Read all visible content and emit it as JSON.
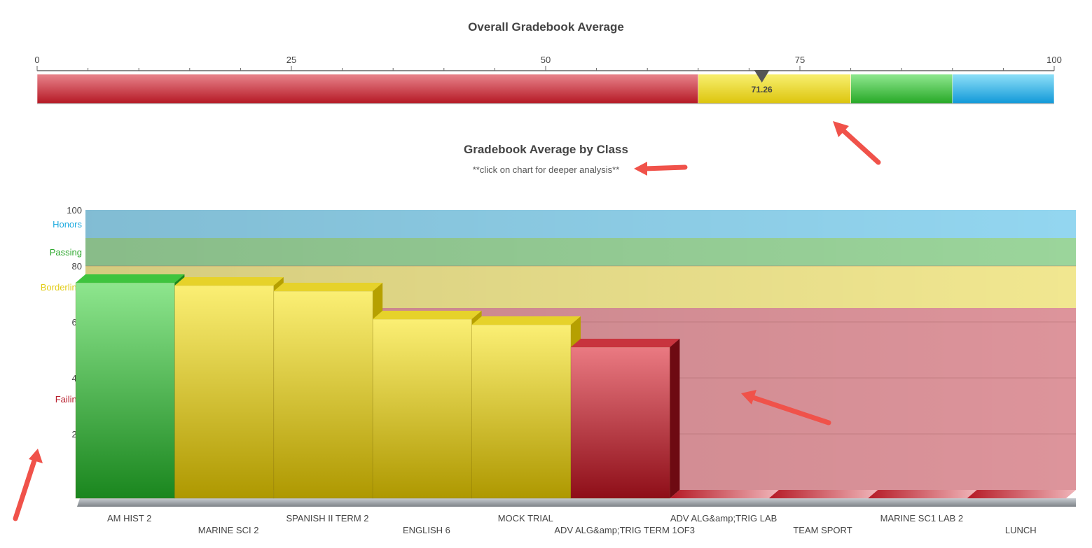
{
  "gauge": {
    "title": "Overall Gradebook Average",
    "min": 0,
    "max": 100,
    "value": 71.26,
    "value_label": "71.26",
    "ticks": [
      0,
      25,
      50,
      75,
      100
    ],
    "ranges": [
      {
        "from": 0,
        "to": 65,
        "color": "#c8202e"
      },
      {
        "from": 65,
        "to": 80,
        "color": "#e8d21c"
      },
      {
        "from": 80,
        "to": 90,
        "color": "#3cbf3c"
      },
      {
        "from": 90,
        "to": 100,
        "color": "#1eaadf"
      }
    ]
  },
  "chart": {
    "title": "Gradebook Average by Class",
    "subtitle": "**click on chart for deeper analysis**"
  },
  "chart_data": {
    "type": "bar",
    "categories": [
      "AM HIST 2",
      "MARINE SCI 2",
      "SPANISH II TERM 2",
      "ENGLISH 6",
      "MOCK TRIAL",
      "ADV ALG&amp;TRIG TERM 1OF3",
      "ADV ALG&amp;TRIG LAB",
      "TEAM SPORT",
      "MARINE SC1 LAB 2",
      "LUNCH"
    ],
    "values": [
      77,
      76,
      74,
      64,
      62,
      54,
      0,
      0,
      0,
      0
    ],
    "ylim": [
      0,
      100
    ],
    "y_ticks": [
      0,
      20,
      40,
      60,
      80,
      100
    ],
    "bands": [
      {
        "label": "Honors",
        "from": 90,
        "to": 100,
        "color": "#1eaadf"
      },
      {
        "label": "Passing",
        "from": 80,
        "to": 90,
        "color": "#2ea82e"
      },
      {
        "label": "Borderline",
        "from": 65,
        "to": 80,
        "color": "#e2cc18"
      },
      {
        "label": "Failing",
        "from": 0,
        "to": 65,
        "color": "#b8202e"
      }
    ]
  }
}
